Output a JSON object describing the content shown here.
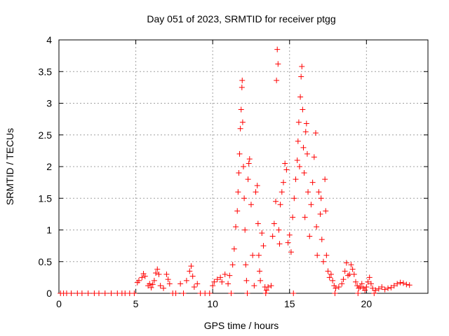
{
  "chart_data": {
    "type": "scatter",
    "title": "Day 051 of 2023, SRMTID for receiver ptgg",
    "xlabel": "GPS time / hours",
    "ylabel": "SRMTID / TECUs",
    "xlim": [
      0,
      24
    ],
    "ylim": [
      0,
      4
    ],
    "xticks": [
      0,
      5,
      10,
      15,
      20
    ],
    "xtick_labels": [
      "0",
      "5",
      "10",
      "15",
      "20"
    ],
    "yticks": [
      0,
      0.5,
      1,
      1.5,
      2,
      2.5,
      3,
      3.5,
      4
    ],
    "ytick_labels": [
      "0",
      "0.5",
      "1",
      "1.5",
      "2",
      "2.5",
      "3",
      "3.5",
      "4"
    ],
    "grid": true,
    "marker": "plus",
    "marker_color": "#ff0000",
    "series": [
      {
        "name": "SRMTID",
        "points": [
          [
            0.1,
            0
          ],
          [
            0.3,
            0
          ],
          [
            0.5,
            0
          ],
          [
            0.8,
            0
          ],
          [
            1.2,
            0
          ],
          [
            1.5,
            0
          ],
          [
            1.9,
            0
          ],
          [
            2.3,
            0
          ],
          [
            2.6,
            0
          ],
          [
            3.0,
            0
          ],
          [
            3.4,
            0
          ],
          [
            3.8,
            0
          ],
          [
            4.1,
            0
          ],
          [
            4.3,
            0
          ],
          [
            4.6,
            0
          ],
          [
            4.9,
            0
          ],
          [
            5.1,
            0.17
          ],
          [
            5.2,
            0.2
          ],
          [
            5.4,
            0.25
          ],
          [
            5.5,
            0.31
          ],
          [
            5.6,
            0.27
          ],
          [
            5.8,
            0.12
          ],
          [
            5.9,
            0.15
          ],
          [
            6.0,
            0.09
          ],
          [
            6.1,
            0.14
          ],
          [
            6.2,
            0.2
          ],
          [
            6.3,
            0.32
          ],
          [
            6.4,
            0.38
          ],
          [
            6.5,
            0.3
          ],
          [
            6.6,
            0.12
          ],
          [
            6.8,
            0.08
          ],
          [
            7.0,
            0.3
          ],
          [
            7.1,
            0.22
          ],
          [
            7.2,
            0.15
          ],
          [
            7.4,
            0
          ],
          [
            7.6,
            0
          ],
          [
            7.9,
            0.15
          ],
          [
            8.1,
            0
          ],
          [
            8.3,
            0.2
          ],
          [
            8.5,
            0.35
          ],
          [
            8.6,
            0.43
          ],
          [
            8.7,
            0.27
          ],
          [
            8.8,
            0.1
          ],
          [
            9.0,
            0.15
          ],
          [
            9.2,
            0
          ],
          [
            9.5,
            0
          ],
          [
            9.8,
            0
          ],
          [
            10.0,
            0.12
          ],
          [
            10.1,
            0.18
          ],
          [
            10.3,
            0.22
          ],
          [
            10.5,
            0.25
          ],
          [
            10.6,
            0.18
          ],
          [
            10.8,
            0.3
          ],
          [
            11.0,
            0.15
          ],
          [
            11.1,
            0.28
          ],
          [
            11.3,
            0.45
          ],
          [
            11.4,
            0.7
          ],
          [
            11.5,
            1.05
          ],
          [
            11.6,
            1.3
          ],
          [
            11.65,
            1.6
          ],
          [
            11.7,
            1.9
          ],
          [
            11.75,
            2.2
          ],
          [
            11.8,
            2.6
          ],
          [
            11.85,
            2.9
          ],
          [
            11.9,
            3.25
          ],
          [
            11.92,
            3.36
          ],
          [
            11.95,
            2.7
          ],
          [
            12.0,
            2.0
          ],
          [
            12.05,
            1.5
          ],
          [
            12.1,
            1.0
          ],
          [
            12.15,
            0.45
          ],
          [
            12.2,
            0.2
          ],
          [
            12.3,
            1.8
          ],
          [
            12.35,
            2.05
          ],
          [
            12.4,
            2.12
          ],
          [
            12.5,
            1.4
          ],
          [
            12.6,
            0.6
          ],
          [
            12.7,
            0.12
          ],
          [
            12.8,
            1.6
          ],
          [
            12.9,
            1.7
          ],
          [
            12.95,
            1.1
          ],
          [
            13.0,
            0.6
          ],
          [
            13.05,
            0.35
          ],
          [
            13.1,
            0.2
          ],
          [
            13.2,
            0.95
          ],
          [
            13.3,
            0.75
          ],
          [
            13.4,
            0.1
          ],
          [
            13.5,
            0.05
          ],
          [
            13.6,
            0.1
          ],
          [
            13.8,
            0.12
          ],
          [
            13.9,
            0.9
          ],
          [
            14.0,
            1.1
          ],
          [
            14.1,
            1.45
          ],
          [
            14.15,
            3.36
          ],
          [
            14.2,
            3.85
          ],
          [
            14.25,
            3.62
          ],
          [
            14.3,
            1.0
          ],
          [
            14.35,
            0.78
          ],
          [
            14.4,
            1.4
          ],
          [
            14.5,
            1.6
          ],
          [
            14.6,
            1.75
          ],
          [
            14.7,
            2.05
          ],
          [
            14.8,
            1.95
          ],
          [
            14.9,
            0.8
          ],
          [
            15.0,
            0.92
          ],
          [
            15.1,
            0.65
          ],
          [
            15.2,
            1.2
          ],
          [
            15.3,
            1.5
          ],
          [
            15.4,
            1.8
          ],
          [
            15.5,
            2.1
          ],
          [
            15.55,
            2.4
          ],
          [
            15.6,
            2.7
          ],
          [
            15.65,
            2.0
          ],
          [
            15.7,
            3.1
          ],
          [
            15.75,
            3.42
          ],
          [
            15.8,
            3.58
          ],
          [
            15.85,
            2.9
          ],
          [
            15.9,
            2.3
          ],
          [
            15.95,
            1.9
          ],
          [
            16.0,
            1.2
          ],
          [
            16.05,
            2.55
          ],
          [
            16.1,
            2.68
          ],
          [
            16.15,
            2.2
          ],
          [
            16.2,
            1.6
          ],
          [
            16.3,
            0.9
          ],
          [
            16.4,
            1.4
          ],
          [
            16.5,
            1.75
          ],
          [
            16.6,
            2.15
          ],
          [
            16.7,
            2.53
          ],
          [
            16.75,
            1.05
          ],
          [
            16.8,
            0.6
          ],
          [
            16.9,
            1.6
          ],
          [
            17.0,
            1.25
          ],
          [
            17.05,
            1.5
          ],
          [
            17.1,
            0.85
          ],
          [
            17.2,
            0.5
          ],
          [
            17.3,
            1.8
          ],
          [
            17.35,
            1.3
          ],
          [
            17.4,
            0.6
          ],
          [
            17.5,
            0.35
          ],
          [
            17.6,
            0.25
          ],
          [
            17.7,
            0.3
          ],
          [
            17.8,
            0.2
          ],
          [
            17.9,
            0.12
          ],
          [
            18.0,
            0.08
          ],
          [
            18.2,
            0.1
          ],
          [
            18.4,
            0.15
          ],
          [
            18.5,
            0.22
          ],
          [
            18.6,
            0.35
          ],
          [
            18.7,
            0.48
          ],
          [
            18.8,
            0.28
          ],
          [
            18.9,
            0.3
          ],
          [
            19.0,
            0.45
          ],
          [
            19.1,
            0.38
          ],
          [
            19.2,
            0.3
          ],
          [
            19.3,
            0.18
          ],
          [
            19.4,
            0.12
          ],
          [
            19.5,
            0.08
          ],
          [
            19.6,
            0.1
          ],
          [
            19.7,
            0.15
          ],
          [
            19.8,
            0.08
          ],
          [
            19.9,
            0.05
          ],
          [
            20.0,
            0.1
          ],
          [
            20.1,
            0.18
          ],
          [
            20.2,
            0.25
          ],
          [
            20.3,
            0.15
          ],
          [
            20.4,
            0.08
          ],
          [
            20.6,
            0.05
          ],
          [
            20.8,
            0.07
          ],
          [
            21.0,
            0.1
          ],
          [
            21.2,
            0.06
          ],
          [
            21.4,
            0.08
          ],
          [
            21.6,
            0.09
          ],
          [
            21.8,
            0.12
          ],
          [
            22.0,
            0.15
          ],
          [
            22.2,
            0.17
          ],
          [
            22.4,
            0.16
          ],
          [
            22.6,
            0.14
          ],
          [
            22.8,
            0.13
          ],
          [
            11.2,
            0
          ],
          [
            12.25,
            0
          ],
          [
            13.45,
            0
          ],
          [
            15.25,
            0
          ],
          [
            17.95,
            0
          ],
          [
            19.45,
            0
          ],
          [
            20.5,
            0
          ]
        ]
      }
    ]
  }
}
